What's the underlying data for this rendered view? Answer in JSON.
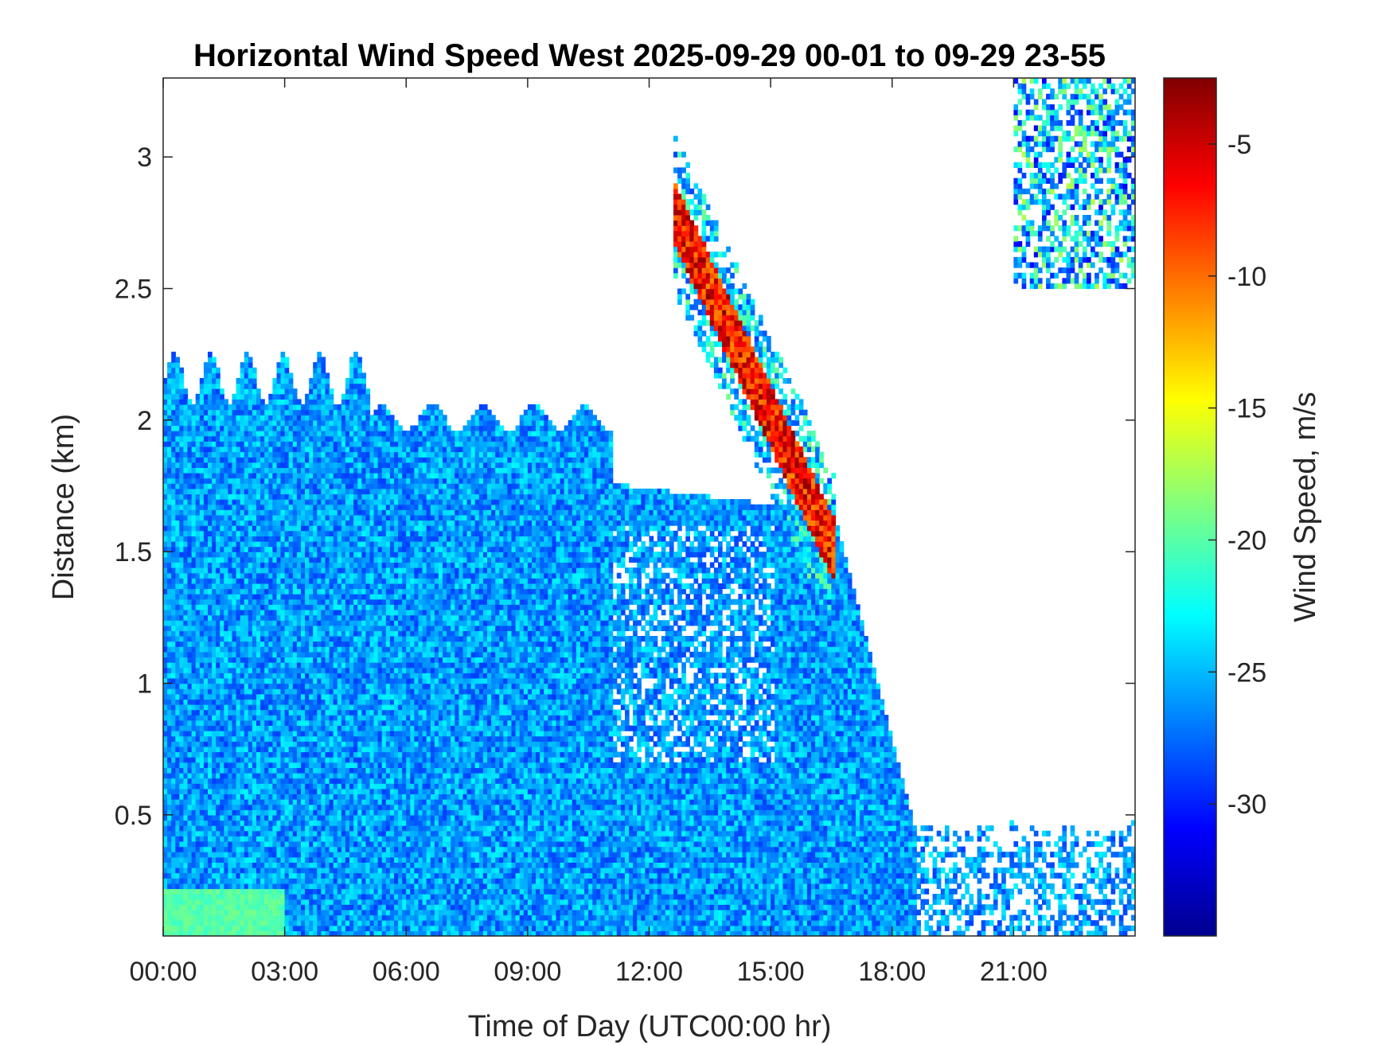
{
  "chart_data": {
    "type": "heatmap",
    "title": "Horizontal Wind Speed West 2025-09-29 00-01 to 09-29 23-55",
    "xlabel": "Time of Day (UTC00:00 hr)",
    "ylabel": "Distance (km)",
    "colorbar_label": "Wind Speed, m/s",
    "x_range_hours": [
      0,
      24
    ],
    "y_range_km": [
      0.04,
      3.3
    ],
    "x_ticks": [
      "00:00",
      "03:00",
      "06:00",
      "09:00",
      "12:00",
      "15:00",
      "18:00",
      "21:00"
    ],
    "x_tick_hours": [
      0,
      3,
      6,
      9,
      12,
      15,
      18,
      21
    ],
    "y_ticks": [
      "0.5",
      "1",
      "1.5",
      "2",
      "2.5",
      "3"
    ],
    "y_tick_values": [
      0.5,
      1,
      1.5,
      2,
      2.5,
      3
    ],
    "colorbar_range": [
      -35,
      -2.5
    ],
    "colorbar_ticks": [
      "-5",
      "-10",
      "-15",
      "-20",
      "-25",
      "-30"
    ],
    "colorbar_tick_values": [
      -5,
      -10,
      -15,
      -20,
      -25,
      -30
    ],
    "colormap": "jet",
    "grid": false,
    "regions": [
      {
        "description": "boundary layer",
        "hours": [
          0,
          11
        ],
        "top_km": 2.0,
        "speed_ms": -26
      },
      {
        "description": "near-surface band",
        "hours": [
          0,
          3
        ],
        "top_km": 0.2,
        "speed_ms": -20
      },
      {
        "description": "descending high-speed streak",
        "hours": [
          12.5,
          16.5
        ],
        "top_km": [
          2.8,
          1.5
        ],
        "speed_ms": -7
      },
      {
        "description": "upper cloud layer",
        "hours": [
          21,
          24
        ],
        "bottom_km": 2.5,
        "top_km": 3.3,
        "speed_ms": -24
      }
    ]
  }
}
